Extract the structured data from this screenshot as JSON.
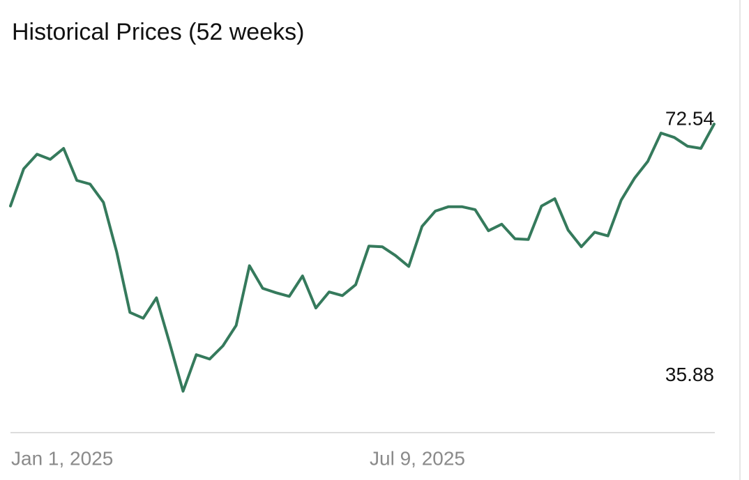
{
  "chart_data": {
    "type": "line",
    "title": "Historical Prices (52 weeks)",
    "categories": [
      "Jan 1, 2025",
      null,
      null,
      null,
      null,
      null,
      null,
      null,
      null,
      null,
      null,
      null,
      null,
      null,
      null,
      null,
      null,
      null,
      null,
      null,
      null,
      null,
      null,
      null,
      null,
      null,
      null,
      "Jul 9, 2025",
      null,
      null,
      null,
      null,
      null,
      null,
      null,
      null,
      null,
      null,
      null,
      null,
      null,
      null,
      null,
      null,
      null,
      null,
      null,
      null,
      null,
      null,
      null,
      null,
      null,
      null
    ],
    "series": [
      {
        "color": "#357a5c",
        "values": [
          61.3,
          66.4,
          68.4,
          67.7,
          69.2,
          64.8,
          64.3,
          61.8,
          55.0,
          46.7,
          45.9,
          48.7,
          42.4,
          35.88,
          40.9,
          40.3,
          42.1,
          44.9,
          53.1,
          50.0,
          49.4,
          48.9,
          51.7,
          47.3,
          49.5,
          49.0,
          50.5,
          55.8,
          55.7,
          54.5,
          53.0,
          58.5,
          60.6,
          61.2,
          61.2,
          60.8,
          57.9,
          58.8,
          56.8,
          56.7,
          61.3,
          62.3,
          58.0,
          55.7,
          57.7,
          57.2,
          62.1,
          65.1,
          67.4,
          71.3,
          70.7,
          69.5,
          69.2,
          72.54
        ]
      }
    ],
    "ylim": [
      30.3,
      80
    ],
    "yticks": [
      35.88,
      72.54
    ],
    "grid": false
  }
}
